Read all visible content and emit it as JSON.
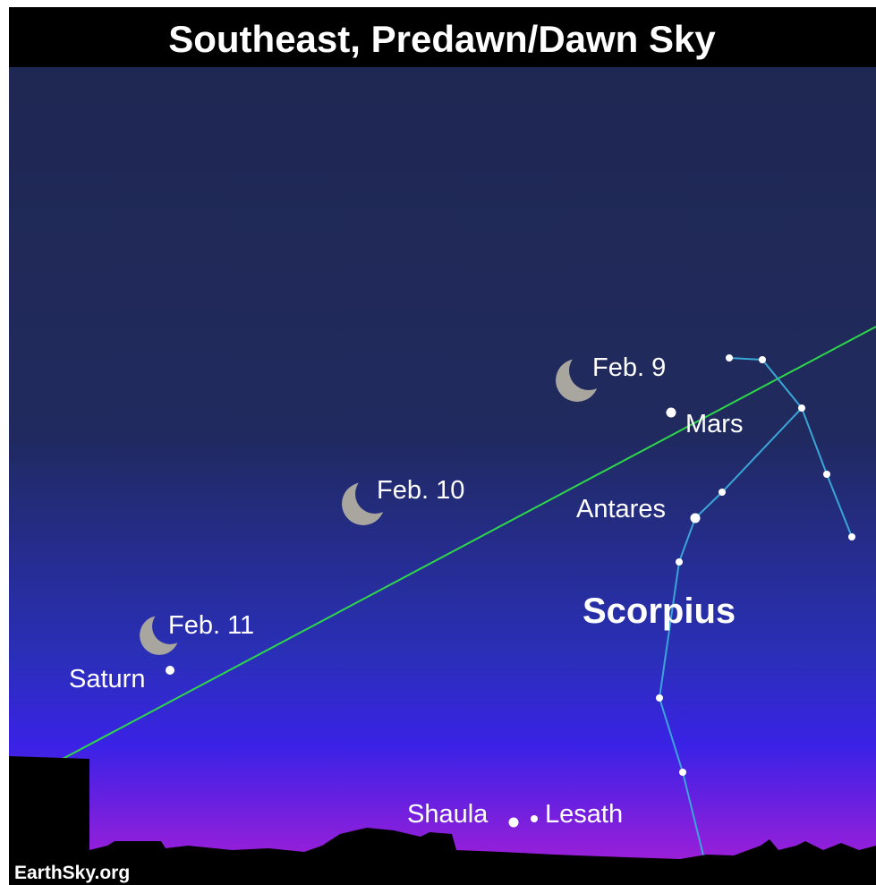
{
  "header": {
    "title": "Southeast, Predawn/Dawn Sky"
  },
  "labels": {
    "moon_feb9": "Feb. 9",
    "moon_feb10": "Feb. 10",
    "moon_feb11": "Feb. 11",
    "mars": "Mars",
    "antares": "Antares",
    "saturn": "Saturn",
    "constellation": "Scorpius",
    "shaula": "Shaula",
    "lesath": "Lesath"
  },
  "credit": "EarthSky.org"
}
